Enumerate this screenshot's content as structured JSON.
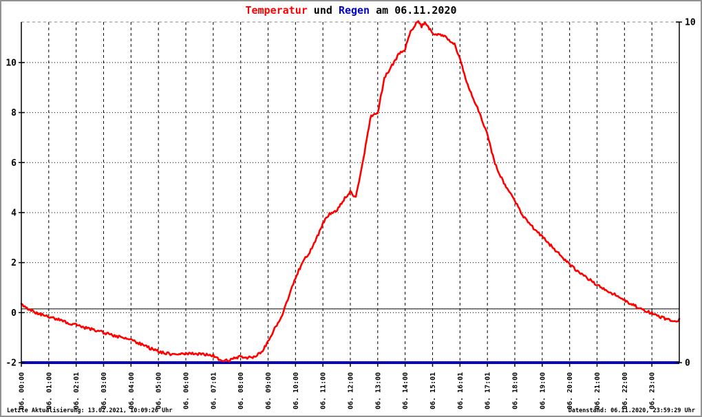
{
  "title": {
    "part_temperatur": "Temperatur",
    "part_und": " und ",
    "part_regen": "Regen",
    "part_date": "am 06.11.2020",
    "color_temperatur": "#ff0000",
    "color_regen": "#0000cc",
    "color_rest": "#000000"
  },
  "footer": {
    "left": "Letzte Aktualisierung: 13.02.2021, 10:09:26 Uhr",
    "right": "Datenstand: 06.11.2020, 23:59:29 Uhr"
  },
  "chart_data": {
    "type": "line",
    "title": "Temperatur und Regen am 06.11.2020",
    "x_axis": {
      "unit": "hour of day 06.11.2020",
      "range_hours": [
        0,
        24
      ],
      "tick_labels": [
        "06. 00:00",
        "06. 01:00",
        "06. 02:01",
        "06. 03:00",
        "06. 04:00",
        "06. 05:00",
        "06. 06:00",
        "06. 07:01",
        "06. 08:00",
        "06. 09:00",
        "06. 10:00",
        "06. 11:00",
        "06. 12:00",
        "06. 13:00",
        "06. 14:00",
        "06. 15:01",
        "06. 16:01",
        "06. 17:01",
        "06. 18:00",
        "06. 19:00",
        "06. 20:00",
        "06. 21:00",
        "06. 22:00",
        "06. 23:00"
      ],
      "grid": "dashed vertical line every hour"
    },
    "y_axis_left": {
      "name": "Temperatur",
      "tick_labels": [
        "-2",
        "0",
        "2",
        "4",
        "6",
        "8",
        "10"
      ],
      "ticks": [
        -2,
        0,
        2,
        4,
        6,
        8,
        10
      ],
      "gridline_values": [
        0,
        2,
        4,
        6,
        8,
        10
      ],
      "range": [
        -2,
        11.62
      ],
      "grid": "dotted horizontal lines"
    },
    "y_axis_right": {
      "name": "Regen",
      "tick_labels": [
        "10",
        "0"
      ],
      "ticks": [
        10,
        0
      ],
      "range": [
        0,
        10
      ]
    },
    "zero_reference_line": 0.15,
    "legend": "none (series identified by colored words in title)",
    "series": [
      {
        "name": "Temperatur",
        "color": "#ff0000",
        "axis": "left",
        "points": [
          [
            0,
            0.32
          ],
          [
            0.25,
            0.12
          ],
          [
            0.5,
            0.02
          ],
          [
            0.75,
            -0.08
          ],
          [
            1,
            -0.16
          ],
          [
            1.25,
            -0.24
          ],
          [
            1.5,
            -0.32
          ],
          [
            1.75,
            -0.42
          ],
          [
            2,
            -0.5
          ],
          [
            2.25,
            -0.58
          ],
          [
            2.5,
            -0.65
          ],
          [
            2.75,
            -0.72
          ],
          [
            3,
            -0.8
          ],
          [
            3.25,
            -0.88
          ],
          [
            3.5,
            -0.95
          ],
          [
            3.75,
            -1.02
          ],
          [
            4,
            -1.1
          ],
          [
            4.25,
            -1.2
          ],
          [
            4.5,
            -1.33
          ],
          [
            4.75,
            -1.45
          ],
          [
            5,
            -1.55
          ],
          [
            5.25,
            -1.62
          ],
          [
            5.5,
            -1.66
          ],
          [
            5.75,
            -1.64
          ],
          [
            6,
            -1.62
          ],
          [
            6.25,
            -1.64
          ],
          [
            6.5,
            -1.66
          ],
          [
            6.75,
            -1.68
          ],
          [
            7,
            -1.72
          ],
          [
            7.25,
            -1.88
          ],
          [
            7.5,
            -1.93
          ],
          [
            7.75,
            -1.85
          ],
          [
            8,
            -1.75
          ],
          [
            8.25,
            -1.8
          ],
          [
            8.5,
            -1.76
          ],
          [
            8.75,
            -1.6
          ],
          [
            9,
            -1.15
          ],
          [
            9.25,
            -0.6
          ],
          [
            9.5,
            -0.15
          ],
          [
            9.75,
            0.6
          ],
          [
            10,
            1.4
          ],
          [
            10.25,
            2.0
          ],
          [
            10.5,
            2.4
          ],
          [
            10.75,
            2.9
          ],
          [
            11,
            3.6
          ],
          [
            11.25,
            3.95
          ],
          [
            11.5,
            4.1
          ],
          [
            11.75,
            4.5
          ],
          [
            12,
            4.85
          ],
          [
            12.2,
            4.6
          ],
          [
            12.5,
            6.3
          ],
          [
            12.75,
            7.85
          ],
          [
            13,
            8.0
          ],
          [
            13.25,
            9.4
          ],
          [
            13.5,
            9.85
          ],
          [
            13.75,
            10.3
          ],
          [
            14,
            10.55
          ],
          [
            14.2,
            11.25
          ],
          [
            14.45,
            11.65
          ],
          [
            14.6,
            11.45
          ],
          [
            14.75,
            11.6
          ],
          [
            15,
            11.16
          ],
          [
            15.25,
            11.1
          ],
          [
            15.5,
            11.0
          ],
          [
            15.8,
            10.75
          ],
          [
            16,
            10.15
          ],
          [
            16.25,
            9.2
          ],
          [
            16.5,
            8.55
          ],
          [
            16.75,
            7.9
          ],
          [
            17,
            7.1
          ],
          [
            17.25,
            6.05
          ],
          [
            17.5,
            5.4
          ],
          [
            17.75,
            4.9
          ],
          [
            18,
            4.5
          ],
          [
            18.25,
            3.95
          ],
          [
            18.5,
            3.6
          ],
          [
            18.75,
            3.3
          ],
          [
            19,
            3.05
          ],
          [
            19.25,
            2.75
          ],
          [
            19.5,
            2.48
          ],
          [
            19.75,
            2.18
          ],
          [
            20,
            1.92
          ],
          [
            20.25,
            1.7
          ],
          [
            20.5,
            1.5
          ],
          [
            20.75,
            1.3
          ],
          [
            21,
            1.1
          ],
          [
            21.25,
            0.95
          ],
          [
            21.5,
            0.8
          ],
          [
            21.75,
            0.65
          ],
          [
            22,
            0.5
          ],
          [
            22.25,
            0.35
          ],
          [
            22.5,
            0.2
          ],
          [
            22.75,
            0.08
          ],
          [
            23,
            -0.02
          ],
          [
            23.25,
            -0.15
          ],
          [
            23.5,
            -0.25
          ],
          [
            23.75,
            -0.33
          ],
          [
            23.95,
            -0.36
          ],
          [
            24,
            -0.28
          ]
        ]
      },
      {
        "name": "Regen",
        "color": "#0000cc",
        "axis": "right",
        "points": [
          [
            0,
            0
          ],
          [
            24,
            0
          ]
        ]
      }
    ]
  }
}
